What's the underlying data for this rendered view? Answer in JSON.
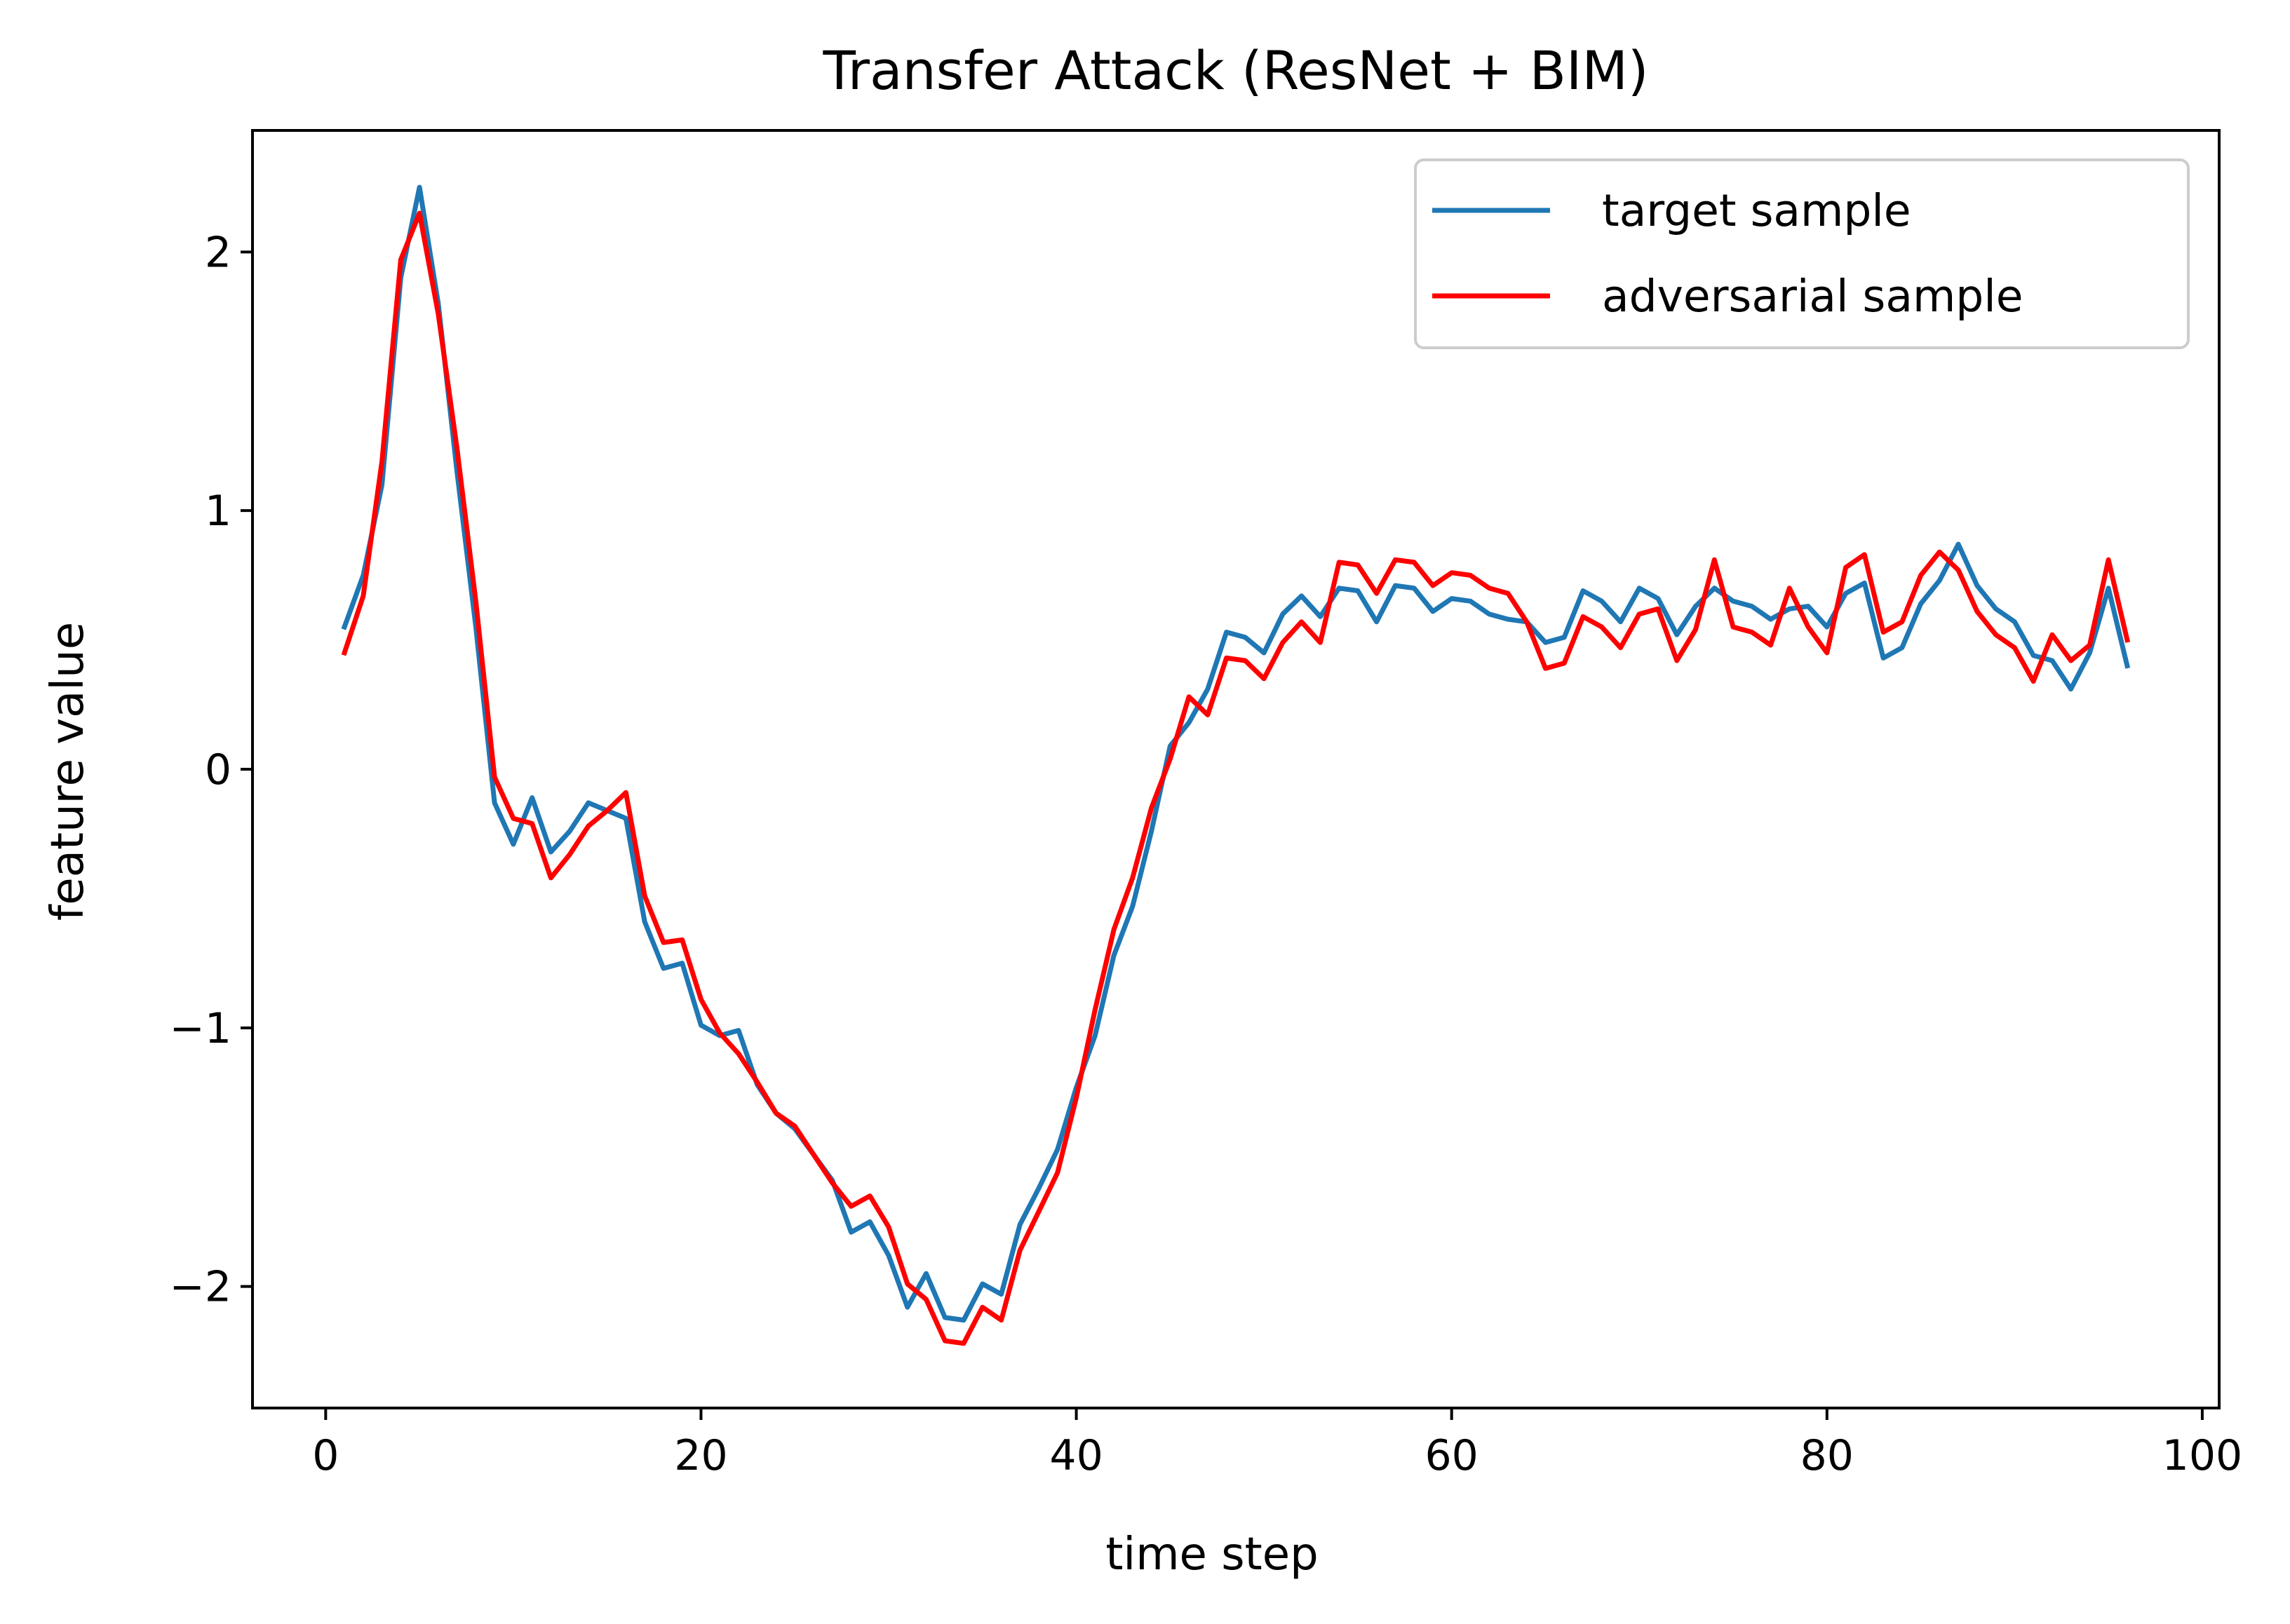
{
  "chart_data": {
    "type": "line",
    "title": "Transfer Attack (ResNet + BIM)",
    "xlabel": "time step",
    "ylabel": "feature value",
    "xlim": [
      -3.9,
      100.9
    ],
    "ylim": [
      -2.47,
      2.47
    ],
    "xticks": [
      0,
      20,
      40,
      60,
      80,
      100
    ],
    "yticks": [
      -2,
      -1,
      0,
      1,
      2
    ],
    "xtick_labels": [
      "0",
      "20",
      "40",
      "60",
      "80",
      "100"
    ],
    "ytick_labels": [
      "−2",
      "−1",
      "0",
      "1",
      "2"
    ],
    "grid": false,
    "legend_position": "top-right",
    "x": [
      1,
      2,
      3,
      4,
      5,
      6,
      7,
      8,
      9,
      10,
      11,
      12,
      13,
      14,
      15,
      16,
      17,
      18,
      19,
      20,
      21,
      22,
      23,
      24,
      25,
      26,
      27,
      28,
      29,
      30,
      31,
      32,
      33,
      34,
      35,
      36,
      37,
      38,
      39,
      40,
      41,
      42,
      43,
      44,
      45,
      46,
      47,
      48,
      49,
      50,
      51,
      52,
      53,
      54,
      55,
      56,
      57,
      58,
      59,
      60,
      61,
      62,
      63,
      64,
      65,
      66,
      67,
      68,
      69,
      70,
      71,
      72,
      73,
      74,
      75,
      76,
      77,
      78,
      79,
      80,
      81,
      82,
      83,
      84,
      85,
      86,
      87,
      88,
      89,
      90,
      91,
      92,
      93,
      94,
      95,
      96
    ],
    "series": [
      {
        "name": "target sample",
        "color": "#1f77b4",
        "values": [
          0.55,
          0.75,
          1.1,
          1.9,
          2.25,
          1.8,
          1.15,
          0.55,
          -0.13,
          -0.29,
          -0.11,
          -0.32,
          -0.24,
          -0.13,
          -0.16,
          -0.19,
          -0.59,
          -0.77,
          -0.75,
          -0.99,
          -1.03,
          -1.01,
          -1.22,
          -1.33,
          -1.39,
          -1.49,
          -1.59,
          -1.79,
          -1.75,
          -1.88,
          -2.08,
          -1.95,
          -2.12,
          -2.13,
          -1.99,
          -2.03,
          -1.76,
          -1.62,
          -1.47,
          -1.23,
          -1.03,
          -0.72,
          -0.53,
          -0.24,
          0.09,
          0.18,
          0.31,
          0.53,
          0.51,
          0.45,
          0.6,
          0.67,
          0.59,
          0.7,
          0.69,
          0.57,
          0.71,
          0.7,
          0.61,
          0.66,
          0.65,
          0.6,
          0.58,
          0.57,
          0.49,
          0.51,
          0.69,
          0.65,
          0.57,
          0.7,
          0.66,
          0.52,
          0.63,
          0.7,
          0.65,
          0.63,
          0.58,
          0.62,
          0.63,
          0.55,
          0.68,
          0.72,
          0.43,
          0.47,
          0.64,
          0.73,
          0.87,
          0.71,
          0.62,
          0.57,
          0.44,
          0.42,
          0.31,
          0.45,
          0.7,
          0.4
        ]
      },
      {
        "name": "adversarial sample",
        "color": "#ff0000",
        "values": [
          0.45,
          0.67,
          1.19,
          1.97,
          2.15,
          1.76,
          1.24,
          0.65,
          -0.03,
          -0.19,
          -0.21,
          -0.42,
          -0.33,
          -0.22,
          -0.16,
          -0.09,
          -0.49,
          -0.67,
          -0.66,
          -0.89,
          -1.02,
          -1.1,
          -1.21,
          -1.33,
          -1.38,
          -1.49,
          -1.6,
          -1.69,
          -1.65,
          -1.77,
          -1.99,
          -2.05,
          -2.21,
          -2.22,
          -2.08,
          -2.13,
          -1.86,
          -1.71,
          -1.56,
          -1.27,
          -0.93,
          -0.62,
          -0.42,
          -0.15,
          0.04,
          0.28,
          0.21,
          0.43,
          0.42,
          0.35,
          0.49,
          0.57,
          0.49,
          0.8,
          0.79,
          0.68,
          0.81,
          0.8,
          0.71,
          0.76,
          0.75,
          0.7,
          0.68,
          0.57,
          0.39,
          0.41,
          0.59,
          0.55,
          0.47,
          0.6,
          0.62,
          0.42,
          0.54,
          0.81,
          0.55,
          0.53,
          0.48,
          0.7,
          0.55,
          0.45,
          0.78,
          0.83,
          0.53,
          0.57,
          0.75,
          0.84,
          0.77,
          0.61,
          0.52,
          0.47,
          0.34,
          0.52,
          0.42,
          0.48,
          0.81,
          0.5
        ]
      }
    ]
  }
}
